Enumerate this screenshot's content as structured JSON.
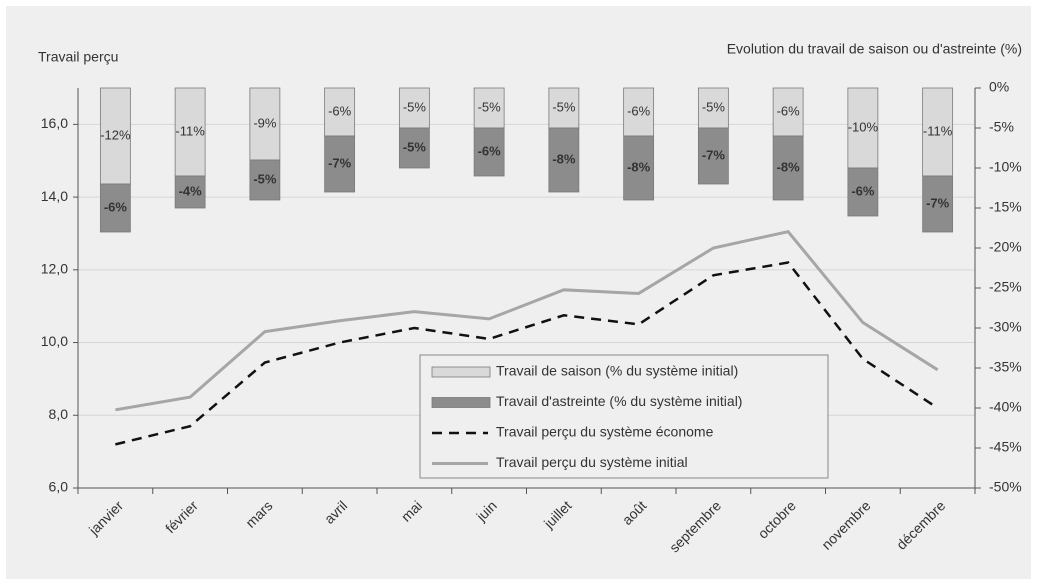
{
  "chart_data": {
    "type": "combo",
    "y_label": "Travail perçu",
    "y2_label": "Evolution  du travail de saison ou d'astreinte (%)",
    "categories": [
      "janvier",
      "février",
      "mars",
      "avril",
      "mai",
      "juin",
      "juillet",
      "août",
      "septembre",
      "octobre",
      "novembre",
      "décembre"
    ],
    "ylim": [
      6,
      17
    ],
    "yticks": [
      {
        "value": 6,
        "label": "6,0"
      },
      {
        "value": 8,
        "label": "8,0"
      },
      {
        "value": 10,
        "label": "10,0"
      },
      {
        "value": 12,
        "label": "12,0"
      },
      {
        "value": 14,
        "label": "14,0"
      },
      {
        "value": 16,
        "label": "16,0"
      }
    ],
    "y2lim": [
      -50,
      0
    ],
    "y2ticks": [
      {
        "value": 0,
        "label": "0%"
      },
      {
        "value": -5,
        "label": "-5%"
      },
      {
        "value": -10,
        "label": "-10%"
      },
      {
        "value": -15,
        "label": "-15%"
      },
      {
        "value": -20,
        "label": "-20%"
      },
      {
        "value": -25,
        "label": "-25%"
      },
      {
        "value": -30,
        "label": "-30%"
      },
      {
        "value": -35,
        "label": "-35%"
      },
      {
        "value": -40,
        "label": "-40%"
      },
      {
        "value": -45,
        "label": "-45%"
      },
      {
        "value": -50,
        "label": "-50%"
      }
    ],
    "grid": true,
    "series": [
      {
        "name": "Travail de saison (% du système initial)",
        "type": "bar",
        "axis": "y2",
        "color": "#d9d9d9",
        "values": [
          -12,
          -11,
          -9,
          -6,
          -5,
          -5,
          -5,
          -6,
          -5,
          -6,
          -10,
          -11
        ],
        "value_labels": [
          "-12%",
          "-11%",
          "-9%",
          "-6%",
          "-5%",
          "-5%",
          "-5%",
          "-6%",
          "-5%",
          "-6%",
          "-10%",
          "-11%"
        ]
      },
      {
        "name": "Travail d'astreinte (% du système initial)",
        "type": "bar",
        "axis": "y2",
        "color": "#8c8c8c",
        "values": [
          -6,
          -4,
          -5,
          -7,
          -5,
          -6,
          -8,
          -8,
          -7,
          -8,
          -6,
          -7
        ],
        "value_labels": [
          "-6%",
          "-4%",
          "-5%",
          "-7%",
          "-5%",
          "-6%",
          "-8%",
          "-8%",
          "-7%",
          "-8%",
          "-6%",
          "-7%"
        ]
      },
      {
        "name": "Travail perçu du système économe",
        "type": "line",
        "dashed": true,
        "color": "#111111",
        "values": [
          7.2,
          7.7,
          9.45,
          10.0,
          10.4,
          10.1,
          10.75,
          10.5,
          11.85,
          12.2,
          9.55,
          8.2
        ]
      },
      {
        "name": "Travail perçu du système  initial",
        "type": "line",
        "dashed": false,
        "color": "#a6a6a6",
        "values": [
          8.15,
          8.5,
          10.3,
          10.6,
          10.85,
          10.65,
          11.45,
          11.35,
          12.6,
          13.05,
          10.55,
          9.25
        ]
      }
    ]
  }
}
